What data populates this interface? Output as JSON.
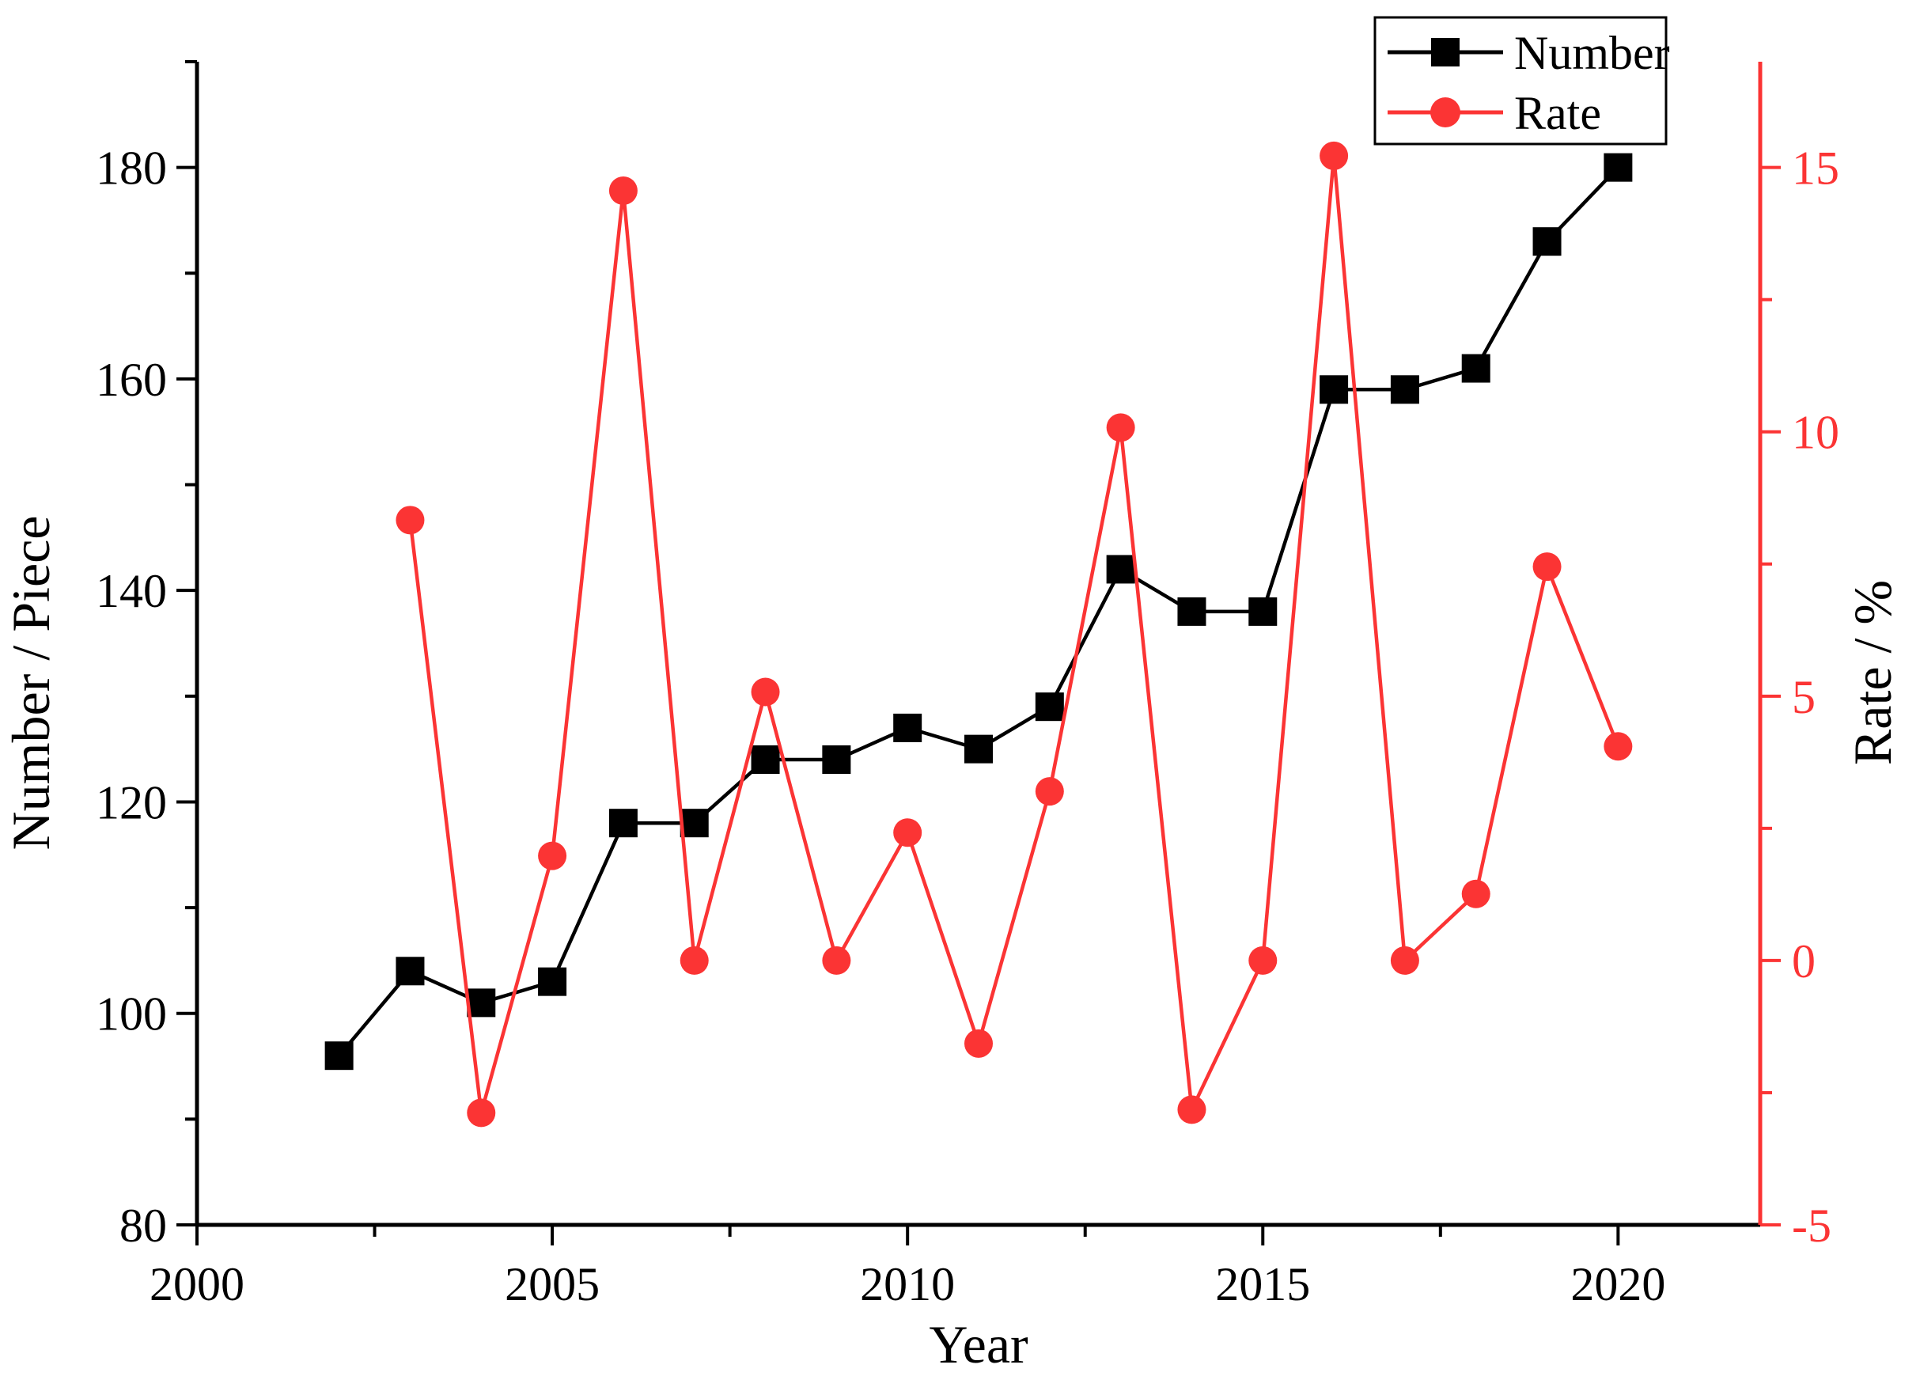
{
  "chart_data": {
    "type": "line",
    "title": "",
    "xlabel": "Year",
    "ylabel_left": "Number / Piece",
    "ylabel_right": "Rate / %",
    "grid": false,
    "legend_position": "top-right",
    "x_domain": [
      2000,
      2022
    ],
    "x_major_ticks": [
      2000,
      2005,
      2010,
      2015,
      2020
    ],
    "x_minor_ticks": [
      2002.5,
      2007.5,
      2012.5,
      2017.5
    ],
    "y_left": {
      "domain": [
        80,
        190
      ],
      "major_ticks": [
        80,
        100,
        120,
        140,
        160,
        180
      ],
      "minor_ticks": [
        90,
        110,
        130,
        150,
        170,
        190
      ]
    },
    "y_right": {
      "domain": [
        -5,
        17
      ],
      "major_ticks": [
        -5,
        0,
        5,
        10,
        15
      ],
      "minor_ticks": [
        -2.5,
        2.5,
        7.5,
        12.5
      ]
    },
    "series": [
      {
        "name": "Number",
        "axis": "left",
        "marker": "square",
        "color": "#000000",
        "x": [
          2002,
          2003,
          2004,
          2005,
          2006,
          2007,
          2008,
          2009,
          2010,
          2011,
          2012,
          2013,
          2014,
          2015,
          2016,
          2017,
          2018,
          2019,
          2020
        ],
        "values": [
          96,
          104,
          101,
          103,
          118,
          118,
          124,
          124,
          127,
          125,
          129,
          142,
          138,
          138,
          159,
          159,
          161,
          173,
          180
        ]
      },
      {
        "name": "Rate",
        "axis": "right",
        "marker": "circle",
        "color": "#FB3434",
        "x": [
          2003,
          2004,
          2005,
          2006,
          2007,
          2008,
          2009,
          2010,
          2011,
          2012,
          2013,
          2014,
          2015,
          2016,
          2017,
          2018,
          2019,
          2020
        ],
        "values": [
          8.33,
          -2.88,
          1.98,
          14.56,
          0.0,
          5.08,
          0.0,
          2.42,
          -1.57,
          3.2,
          10.08,
          -2.82,
          0.0,
          15.22,
          0.0,
          1.26,
          7.45,
          4.05
        ]
      }
    ]
  },
  "legend": {
    "items": [
      {
        "label": "Number"
      },
      {
        "label": "Rate"
      }
    ]
  },
  "colors": {
    "number": "#000000",
    "rate": "#FB3434",
    "background": "#FFFFFF"
  }
}
